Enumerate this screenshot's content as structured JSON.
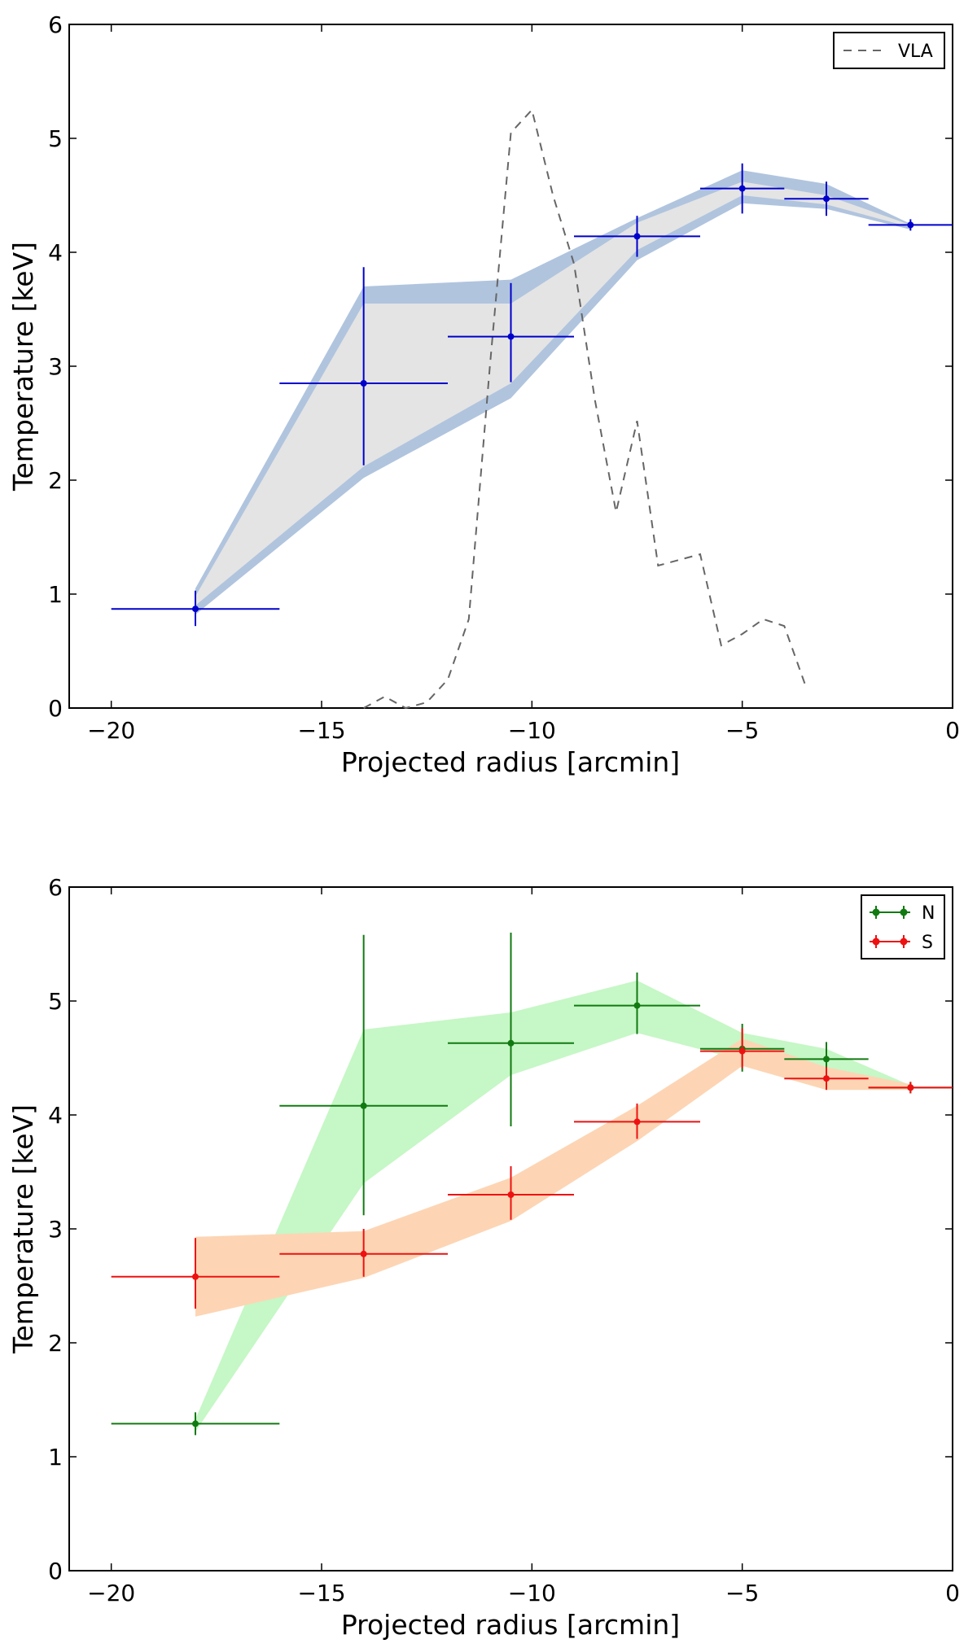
{
  "chart_data": [
    {
      "type": "line",
      "title": "",
      "xlabel": "Projected radius [arcmin]",
      "ylabel": "Temperature [keV]",
      "xlim": [
        -21,
        0
      ],
      "ylim": [
        0,
        6
      ],
      "xticks": [
        -20,
        -15,
        -10,
        -5,
        0
      ],
      "xtick_labels": [
        "−20",
        "−15",
        "−10",
        "−5",
        "0"
      ],
      "yticks": [
        0,
        1,
        2,
        3,
        4,
        5,
        6
      ],
      "ytick_labels": [
        "0",
        "1",
        "2",
        "3",
        "4",
        "5",
        "6"
      ],
      "legend_position": "top-right",
      "bands": [
        {
          "name": "outer band",
          "color": "#b0c4de",
          "x": [
            -18,
            -14,
            -10.5,
            -7.5,
            -5,
            -3,
            -1
          ],
          "upper": [
            1.05,
            3.7,
            3.76,
            4.3,
            4.72,
            4.6,
            4.25
          ],
          "lower": [
            0.82,
            2.02,
            2.72,
            3.93,
            4.43,
            4.38,
            4.2
          ]
        },
        {
          "name": "inner band",
          "color": "#e4e4e4",
          "x": [
            -18,
            -14,
            -10.5,
            -7.5,
            -5,
            -3,
            -1
          ],
          "upper": [
            0.98,
            3.55,
            3.55,
            4.26,
            4.62,
            4.5,
            4.24
          ],
          "lower": [
            0.9,
            2.12,
            2.85,
            4.02,
            4.5,
            4.42,
            4.22
          ]
        }
      ],
      "series": [
        {
          "name": "Data",
          "color": "#0000cc",
          "style": "errorbar",
          "x": [
            -18,
            -14,
            -10.5,
            -7.5,
            -5,
            -3,
            -1
          ],
          "xerr": [
            2,
            2,
            1.5,
            1.5,
            1,
            1,
            1
          ],
          "y": [
            0.87,
            2.85,
            3.26,
            4.14,
            4.56,
            4.47,
            4.24
          ],
          "yerr_low": [
            0.15,
            0.72,
            0.4,
            0.18,
            0.22,
            0.15,
            0.05
          ],
          "yerr_high": [
            0.16,
            1.02,
            0.47,
            0.18,
            0.22,
            0.15,
            0.05
          ]
        },
        {
          "name": "VLA",
          "color": "#666666",
          "style": "dashed",
          "x": [
            -14,
            -13.5,
            -13,
            -12.5,
            -12,
            -11.5,
            -11,
            -10.5,
            -10,
            -9.5,
            -9,
            -8.5,
            -8,
            -7.5,
            -7,
            -6.5,
            -6,
            -5.5,
            -5,
            -4.5,
            -4,
            -3.5
          ],
          "y": [
            0,
            0.1,
            0,
            0.05,
            0.25,
            0.78,
            3.0,
            5.05,
            5.25,
            4.5,
            3.9,
            2.7,
            1.72,
            2.52,
            1.25,
            1.3,
            1.35,
            0.55,
            0.65,
            0.78,
            0.72,
            0.2
          ]
        }
      ],
      "legend": [
        {
          "label": "VLA",
          "symbol": "dashed",
          "color": "#666666"
        }
      ]
    },
    {
      "type": "line",
      "title": "",
      "xlabel": "Projected radius [arcmin]",
      "ylabel": "Temperature [keV]",
      "xlim": [
        -21,
        0
      ],
      "ylim": [
        0,
        6
      ],
      "xticks": [
        -20,
        -15,
        -10,
        -5,
        0
      ],
      "xtick_labels": [
        "−20",
        "−15",
        "−10",
        "−5",
        "0"
      ],
      "yticks": [
        0,
        1,
        2,
        3,
        4,
        5,
        6
      ],
      "ytick_labels": [
        "0",
        "1",
        "2",
        "3",
        "4",
        "5",
        "6"
      ],
      "legend_position": "top-right",
      "bands": [
        {
          "name": "N band",
          "color": "#c6f7c6",
          "x": [
            -18,
            -14,
            -10.5,
            -7.5,
            -5,
            -3,
            -1
          ],
          "upper": [
            1.33,
            4.75,
            4.9,
            5.18,
            4.72,
            4.58,
            4.26
          ],
          "lower": [
            1.22,
            3.4,
            4.35,
            4.72,
            4.48,
            4.38,
            4.22
          ]
        },
        {
          "name": "S band",
          "color": "#fdd5b4",
          "x": [
            -18,
            -14,
            -10.5,
            -7.5,
            -5,
            -3,
            -1
          ],
          "upper": [
            2.93,
            2.98,
            3.45,
            4.08,
            4.67,
            4.42,
            4.27
          ],
          "lower": [
            2.23,
            2.57,
            3.07,
            3.77,
            4.43,
            4.22,
            4.22
          ]
        }
      ],
      "series": [
        {
          "name": "N",
          "color": "#117a11",
          "style": "errorbar",
          "x": [
            -18,
            -14,
            -10.5,
            -7.5,
            -5,
            -3,
            -1
          ],
          "xerr": [
            2,
            2,
            1.5,
            1.5,
            1,
            1,
            1
          ],
          "y": [
            1.29,
            4.08,
            4.63,
            4.96,
            4.58,
            4.49,
            4.24
          ],
          "yerr_low": [
            0.1,
            0.96,
            0.73,
            0.25,
            0.2,
            0.15,
            0.05
          ],
          "yerr_high": [
            0.1,
            1.5,
            0.97,
            0.29,
            0.22,
            0.15,
            0.05
          ]
        },
        {
          "name": "S",
          "color": "#ee1111",
          "style": "errorbar",
          "x": [
            -18,
            -14,
            -10.5,
            -7.5,
            -5,
            -3,
            -1
          ],
          "xerr": [
            2,
            2,
            1.5,
            1.5,
            1,
            1,
            1
          ],
          "y": [
            2.58,
            2.78,
            3.3,
            3.94,
            4.56,
            4.32,
            4.24
          ],
          "yerr_low": [
            0.28,
            0.2,
            0.22,
            0.15,
            0.15,
            0.1,
            0.05
          ],
          "yerr_high": [
            0.34,
            0.22,
            0.25,
            0.16,
            0.2,
            0.1,
            0.05
          ]
        }
      ],
      "legend": [
        {
          "label": "N",
          "symbol": "errorbar",
          "color": "#117a11"
        },
        {
          "label": "S",
          "symbol": "errorbar",
          "color": "#ee1111"
        }
      ]
    }
  ]
}
